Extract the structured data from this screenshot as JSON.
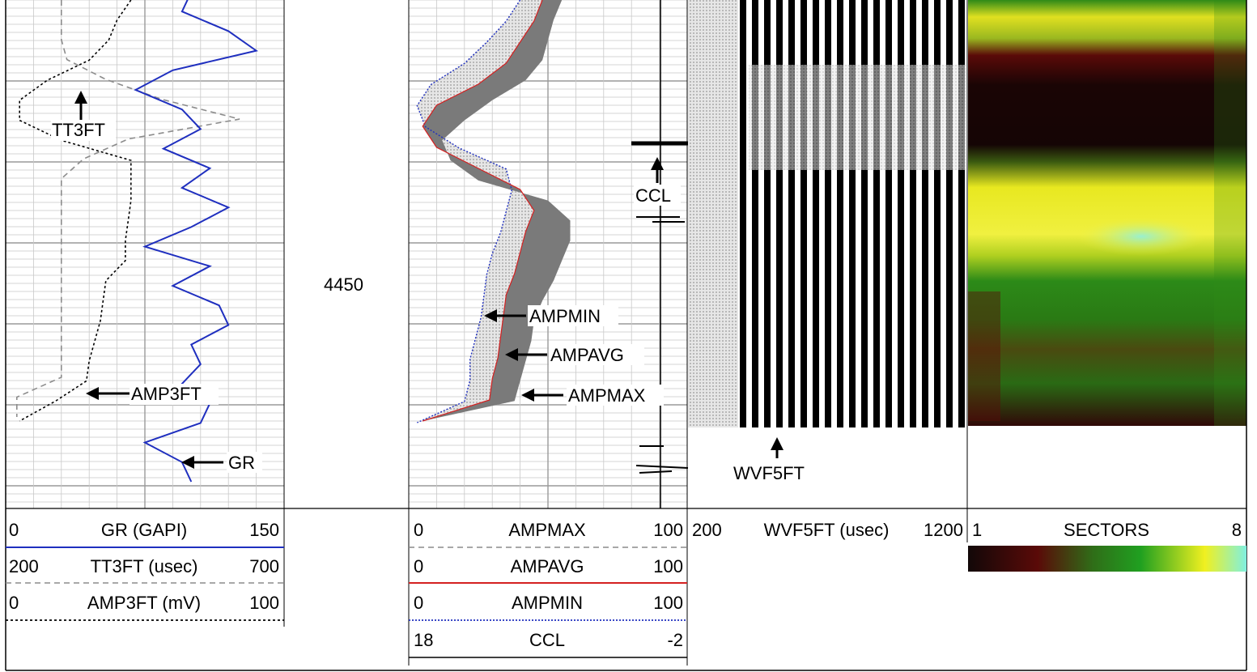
{
  "depth": {
    "label": "4450"
  },
  "tracks": {
    "track1": {
      "headers": [
        {
          "left": "0",
          "name": "GR (GAPI)",
          "right": "150",
          "color": "#1f2fbf",
          "style": "solid"
        },
        {
          "left": "200",
          "name": "TT3FT (usec)",
          "right": "700",
          "color": "#8c8c8c",
          "style": "dashed"
        },
        {
          "left": "0",
          "name": "AMP3FT (mV)",
          "right": "100",
          "color": "#000000",
          "style": "dotted"
        }
      ],
      "annotations": {
        "tt3ft": "TT3FT",
        "amp3ft": "AMP3FT",
        "gr": "GR"
      }
    },
    "track2": {
      "headers": [
        {
          "left": "0",
          "name": "AMPMAX",
          "right": "100",
          "color": "#8c8c8c",
          "style": "dashed"
        },
        {
          "left": "0",
          "name": "AMPAVG",
          "right": "100",
          "color": "#d42020",
          "style": "solid"
        },
        {
          "left": "0",
          "name": "AMPMIN",
          "right": "100",
          "color": "#1f2fbf",
          "style": "dotted"
        },
        {
          "left": "18",
          "name": "CCL",
          "right": "-2",
          "color": "#000000",
          "style": "solid"
        }
      ],
      "annotations": {
        "ampmin": "AMPMIN",
        "ampavg": "AMPAVG",
        "ampmax": "AMPMAX",
        "ccl": "CCL"
      }
    },
    "track3": {
      "header": {
        "left": "200",
        "name": "WVF5FT (usec)",
        "right": "1200"
      },
      "annotations": {
        "wvf": "WVF5FT"
      }
    },
    "track4": {
      "header": {
        "left": "1",
        "name": "SECTORS",
        "right": "8"
      },
      "colorscale": [
        "#120808",
        "#5a0a08",
        "#2f6e18",
        "#20a020",
        "#f0f020",
        "#80f0e0"
      ]
    }
  },
  "chart_data": {
    "type": "line",
    "depth_at_label": 4450,
    "series": [
      {
        "name": "GR",
        "unit": "GAPI",
        "scale": [
          0,
          150
        ],
        "values": [
          100,
          95,
          120,
          135,
          90,
          70,
          95,
          105,
          85,
          110,
          95,
          120,
          100,
          75,
          110,
          90,
          115,
          120,
          100,
          105,
          95,
          110,
          105,
          75,
          95,
          100
        ]
      },
      {
        "name": "TT3FT",
        "unit": "usec",
        "scale": [
          200,
          700
        ],
        "values": [
          300,
          300,
          300,
          310,
          380,
          480,
          620,
          420,
          340,
          300,
          300,
          300,
          300,
          300,
          300,
          300,
          300,
          300,
          300,
          300,
          220,
          220
        ]
      },
      {
        "name": "AMP3FT",
        "unit": "mV",
        "scale": [
          0,
          100
        ],
        "values": [
          45,
          40,
          37,
          30,
          15,
          5,
          5,
          20,
          45,
          45,
          45,
          44,
          43,
          43,
          36,
          35,
          34,
          32,
          30,
          29,
          18,
          5
        ]
      },
      {
        "name": "AMPMAX",
        "unit": "",
        "scale": [
          0,
          100
        ],
        "values": [
          55,
          52,
          50,
          48,
          42,
          30,
          20,
          12,
          15,
          25,
          50,
          58,
          58,
          55,
          52,
          48,
          45,
          44,
          42,
          40,
          38,
          5
        ]
      },
      {
        "name": "AMPAVG",
        "unit": "",
        "scale": [
          0,
          100
        ],
        "values": [
          48,
          45,
          40,
          35,
          25,
          10,
          5,
          10,
          25,
          40,
          45,
          42,
          40,
          38,
          35,
          34,
          33,
          32,
          30,
          29,
          5
        ]
      },
      {
        "name": "AMPMIN",
        "unit": "",
        "scale": [
          0,
          100
        ],
        "values": [
          40,
          35,
          28,
          20,
          8,
          3,
          6,
          18,
          35,
          37,
          35,
          33,
          30,
          28,
          27,
          26,
          24,
          22,
          22,
          20,
          3
        ]
      },
      {
        "name": "CCL",
        "unit": "",
        "scale": [
          18,
          -2
        ],
        "values": []
      },
      {
        "name": "WVF5FT",
        "unit": "usec",
        "scale": [
          200,
          1200
        ],
        "values": []
      },
      {
        "name": "SECTORS",
        "unit": "",
        "scale": [
          1,
          8
        ],
        "values": []
      }
    ]
  }
}
